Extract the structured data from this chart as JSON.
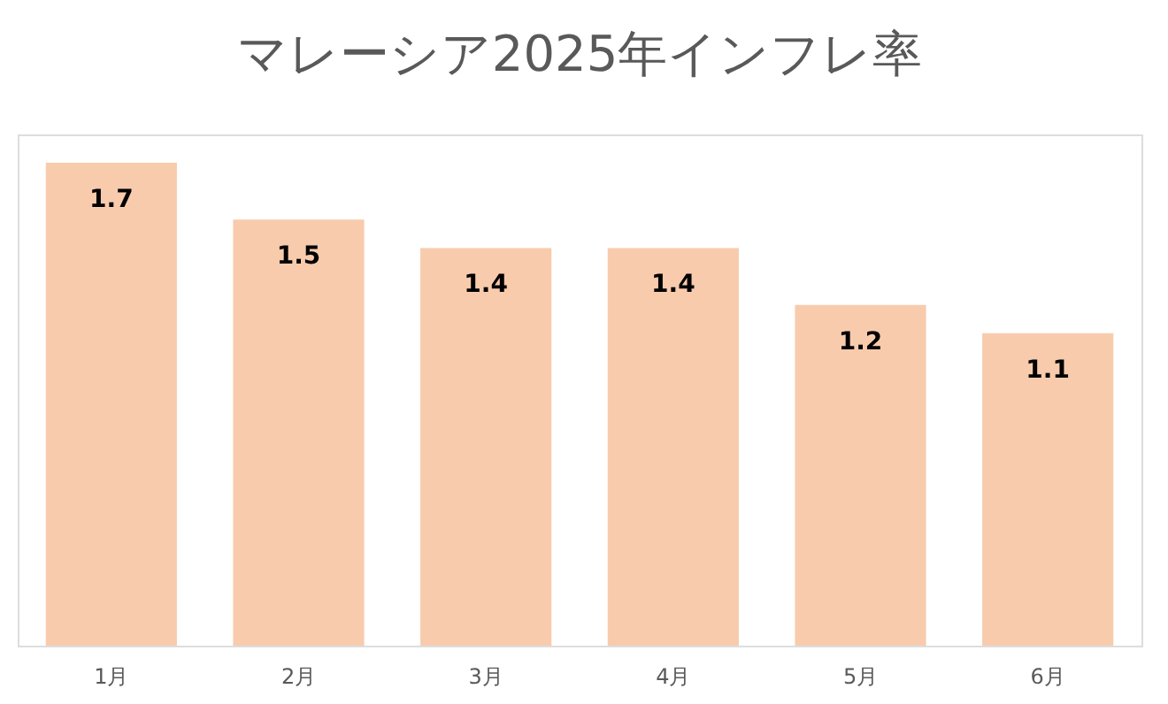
{
  "chart_data": {
    "type": "bar",
    "title": "マレーシア2025年インフレ率",
    "categories": [
      "1月",
      "2月",
      "3月",
      "4月",
      "5月",
      "6月"
    ],
    "values": [
      1.7,
      1.5,
      1.4,
      1.4,
      1.2,
      1.1
    ],
    "color": "#f8cbad",
    "data_labels": true,
    "grid": false
  }
}
